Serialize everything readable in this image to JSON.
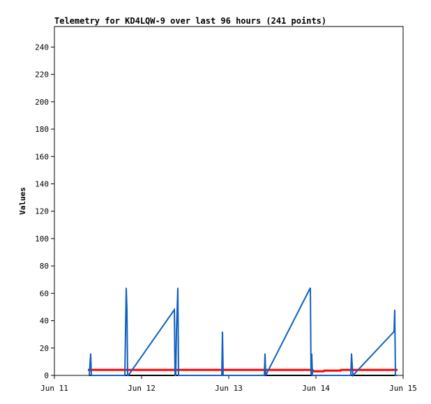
{
  "chart_data": {
    "type": "line",
    "title": "Telemetry for KD4LQW-9 over last 96 hours (241 points)",
    "y_label": "Values",
    "xlim": [
      11,
      15
    ],
    "xticks": [
      {
        "value": 11,
        "label": "Jun 11"
      },
      {
        "value": 12,
        "label": "Jun 12"
      },
      {
        "value": 13,
        "label": "Jun 13"
      },
      {
        "value": 14,
        "label": "Jun 14"
      },
      {
        "value": 15,
        "label": "Jun 15"
      }
    ],
    "ylim": [
      0,
      255
    ],
    "yticks": [
      0,
      20,
      40,
      60,
      80,
      100,
      120,
      140,
      160,
      180,
      200,
      220,
      240
    ],
    "series": [
      {
        "color": "#000000",
        "x": [
          11.4,
          14.936
        ],
        "values": [
          0,
          0
        ]
      },
      {
        "color": "#ff0000",
        "x": [
          11.384,
          13.96,
          13.976,
          14.088,
          14.096,
          14.28,
          14.288,
          14.936
        ],
        "values": [
          4,
          4,
          3,
          3,
          3.5,
          3.5,
          4,
          4
        ]
      },
      {
        "color": "#1060c0",
        "x": [
          11.4,
          11.416,
          11.424,
          11.808,
          11.816,
          11.824,
          11.832,
          11.84,
          11.848,
          12.376,
          12.384,
          12.392,
          12.4,
          12.416,
          12.424,
          12.92,
          12.928,
          12.936,
          13.408,
          13.416,
          13.424,
          13.936,
          13.944,
          13.952,
          13.96,
          14.4,
          14.408,
          14.424,
          14.896,
          14.904,
          14.912,
          14.936
        ],
        "values": [
          0,
          16,
          0,
          0,
          32,
          64,
          48,
          0,
          0,
          48,
          0,
          0,
          32,
          64,
          0,
          0,
          32,
          0,
          0,
          16,
          0,
          64,
          0,
          16,
          0,
          0,
          16,
          0,
          32,
          48,
          0,
          0
        ]
      }
    ]
  }
}
